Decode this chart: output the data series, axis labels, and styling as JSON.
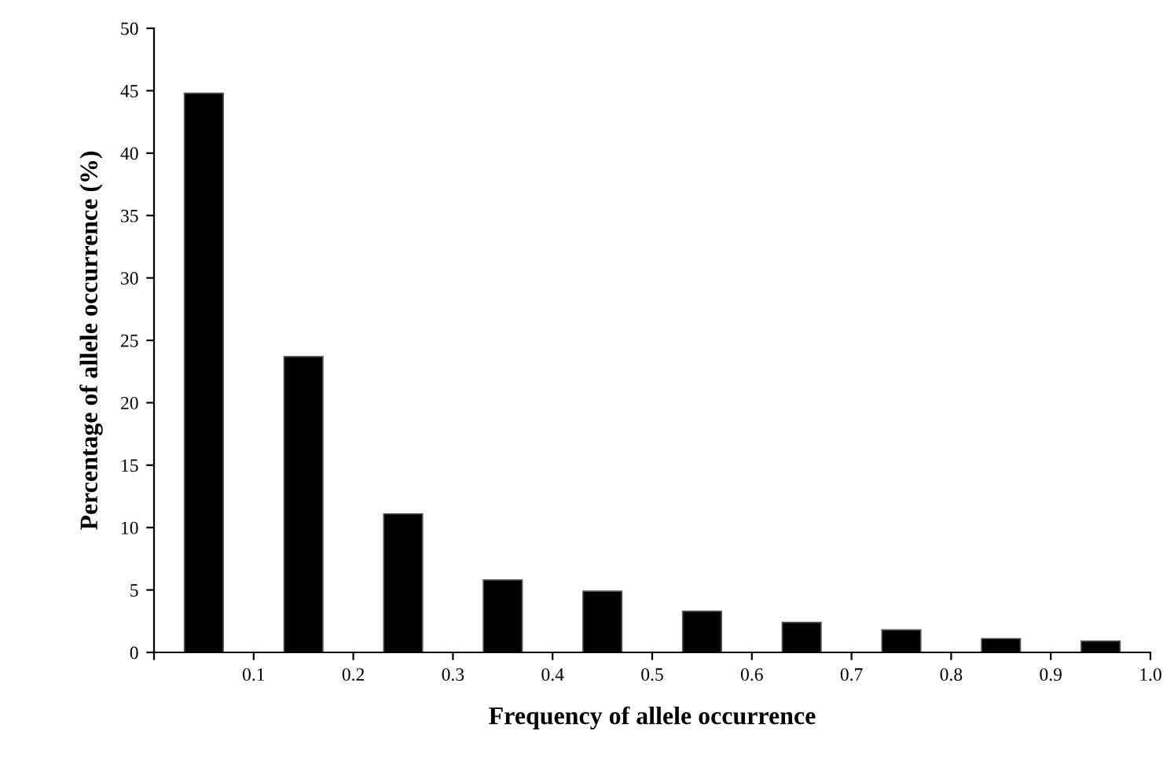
{
  "chart_data": {
    "type": "bar",
    "xlabel": "Frequency of allele occurrence",
    "ylabel": "Percentage of allele occurrence (%)",
    "x": [
      0.05,
      0.15,
      0.25,
      0.35,
      0.45,
      0.55,
      0.65,
      0.75,
      0.85,
      0.95
    ],
    "values": [
      44.8,
      23.7,
      11.1,
      5.8,
      4.9,
      3.3,
      2.4,
      1.8,
      1.1,
      0.9
    ],
    "color": "#000000",
    "xlim": [
      0,
      1.0
    ],
    "xticks": [
      {
        "value": 0,
        "label": null
      },
      0.1,
      0.2,
      0.3,
      0.4,
      0.5,
      0.6,
      0.7,
      0.8,
      0.9,
      {
        "value": 1.0,
        "label": "1.0"
      }
    ],
    "ylim": [
      0,
      50
    ],
    "yticks": [
      0,
      5,
      10,
      15,
      20,
      25,
      30,
      35,
      40,
      45,
      50
    ],
    "grid": false
  }
}
